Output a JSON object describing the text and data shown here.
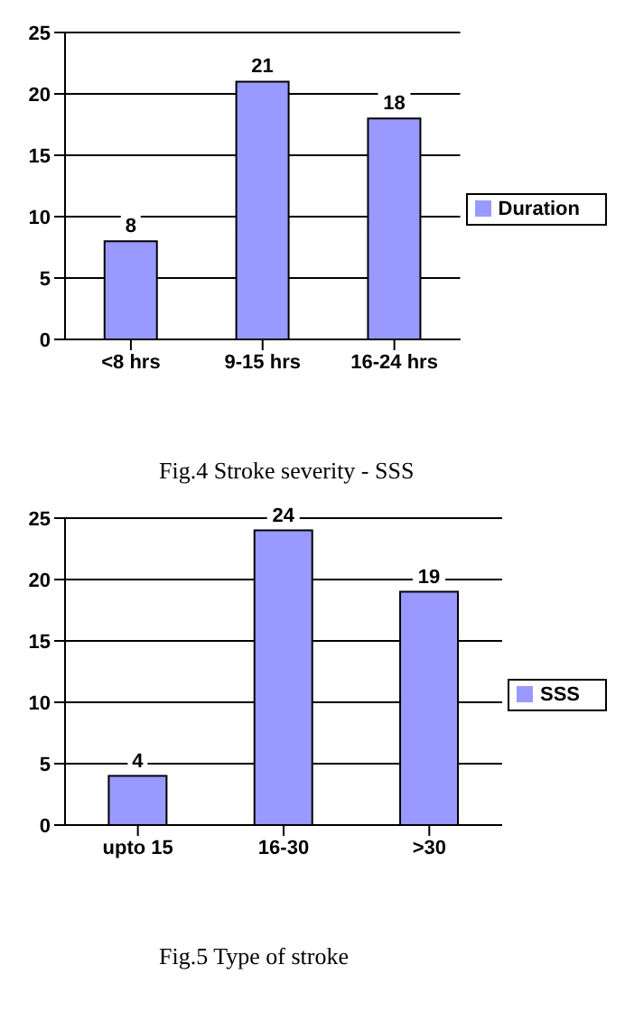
{
  "chart_data": [
    {
      "type": "bar",
      "categories": [
        "<8 hrs",
        "9-15 hrs",
        "16-24 hrs"
      ],
      "series": [
        {
          "name": "Duration",
          "color": "#9999ff",
          "values": [
            8,
            21,
            18
          ]
        }
      ],
      "ylim": [
        0,
        25
      ],
      "yticks": [
        0,
        5,
        10,
        15,
        20,
        25
      ],
      "grid": "y",
      "legend": "right",
      "data_labels": true,
      "annotations": [
        "Fig.4 Stroke severity - SSS"
      ]
    },
    {
      "type": "bar",
      "categories": [
        "upto 15",
        "16-30",
        ">30"
      ],
      "series": [
        {
          "name": "SSS",
          "color": "#9999ff",
          "values": [
            4,
            24,
            19
          ]
        }
      ],
      "ylim": [
        0,
        25
      ],
      "yticks": [
        0,
        5,
        10,
        15,
        20,
        25
      ],
      "grid": "y",
      "legend": "right",
      "data_labels": true,
      "annotations": [
        "Fig.5 Type of stroke"
      ]
    }
  ]
}
